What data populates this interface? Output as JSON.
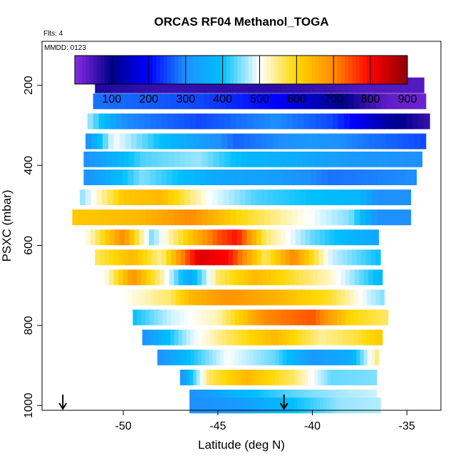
{
  "chart_data": {
    "type": "heatmap",
    "title": "ORCAS RF04 Methanol_TOGA",
    "note_flights": "Flts: 4",
    "note_date": "MMDD: 0123",
    "xlabel": "Latitude (deg N)",
    "ylabel": "PSXC (mbar)",
    "xlim": [
      -54.3,
      -33.2
    ],
    "ylim": [
      1012,
      90
    ],
    "y_reversed": true,
    "x_ticks": [
      -50,
      -45,
      -40,
      -35
    ],
    "x_tick_labels": [
      "-50",
      "-45",
      "-40",
      "-35"
    ],
    "y_ticks": [
      200,
      400,
      600,
      800,
      1000
    ],
    "y_tick_labels": [
      "200",
      "400",
      "600",
      "800",
      "1000"
    ],
    "colorbar": {
      "min": 0,
      "max": 900,
      "ticks": [
        100,
        200,
        300,
        400,
        500,
        600,
        700,
        800,
        900
      ],
      "tick_labels": [
        "100",
        "200",
        "300",
        "400",
        "500",
        "600",
        "700",
        "800",
        "900"
      ],
      "colors": [
        "#8a2be2",
        "#00008b",
        "#0000ff",
        "#1e90ff",
        "#00bfff",
        "#ffffff",
        "#ffd700",
        "#ff8c00",
        "#ff0000",
        "#8b0000"
      ]
    },
    "bands": [
      {
        "p": 200,
        "lat0": -51.5,
        "lat1": -34.1,
        "segments": [
          [
            -51.5,
            80
          ],
          [
            -48.0,
            60
          ],
          [
            -42.0,
            70
          ],
          [
            -39.0,
            55
          ],
          [
            -37.0,
            40
          ],
          [
            -34.1,
            40
          ]
        ]
      },
      {
        "p": 240,
        "lat0": -51.6,
        "lat1": -34.0,
        "segments": [
          [
            -51.6,
            280
          ],
          [
            -46.0,
            250
          ],
          [
            -42.0,
            200
          ],
          [
            -39.0,
            120
          ],
          [
            -36.0,
            30
          ],
          [
            -34.0,
            20
          ]
        ]
      },
      {
        "p": 290,
        "lat0": -51.9,
        "lat1": -33.8,
        "segments": [
          [
            -51.9,
            470
          ],
          [
            -50.0,
            300
          ],
          [
            -46.0,
            250
          ],
          [
            -42.0,
            300
          ],
          [
            -39.0,
            250
          ],
          [
            -36.0,
            120
          ],
          [
            -33.8,
            60
          ]
        ]
      },
      {
        "p": 340,
        "lat0": -52.0,
        "lat1": -34.0,
        "segments": [
          [
            -52.0,
            300
          ],
          [
            -50.5,
            500
          ],
          [
            -48.0,
            400
          ],
          [
            -44.0,
            270
          ],
          [
            -40.0,
            320
          ],
          [
            -37.0,
            280
          ],
          [
            -34.0,
            250
          ]
        ]
      },
      {
        "p": 385,
        "lat0": -52.1,
        "lat1": -34.2,
        "segments": [
          [
            -52.1,
            300
          ],
          [
            -49.0,
            430
          ],
          [
            -46.0,
            460
          ],
          [
            -43.5,
            380
          ],
          [
            -41.0,
            360
          ],
          [
            -38.0,
            320
          ],
          [
            -34.2,
            300
          ]
        ]
      },
      {
        "p": 430,
        "lat0": -52.1,
        "lat1": -34.5,
        "segments": [
          [
            -52.1,
            300
          ],
          [
            -49.0,
            450
          ],
          [
            -45.0,
            350
          ],
          [
            -42.0,
            330
          ],
          [
            -39.0,
            280
          ],
          [
            -34.5,
            300
          ]
        ]
      },
      {
        "p": 480,
        "lat0": -52.3,
        "lat1": -34.8,
        "segments": [
          [
            -52.3,
            450
          ],
          [
            -50.0,
            620
          ],
          [
            -48.0,
            640
          ],
          [
            -45.5,
            500
          ],
          [
            -43.0,
            430
          ],
          [
            -40.0,
            400
          ],
          [
            -37.5,
            380
          ],
          [
            -36.5,
            300
          ],
          [
            -34.8,
            300
          ]
        ]
      },
      {
        "p": 530,
        "lat0": -52.7,
        "lat1": -34.8,
        "segments": [
          [
            -52.7,
            620
          ],
          [
            -49.0,
            640
          ],
          [
            -46.5,
            700
          ],
          [
            -44.0,
            600
          ],
          [
            -41.0,
            520
          ],
          [
            -38.0,
            450
          ],
          [
            -36.5,
            300
          ],
          [
            -34.8,
            300
          ]
        ]
      },
      {
        "p": 580,
        "lat0": -52.0,
        "lat1": -36.5,
        "segments": [
          [
            -52.0,
            500
          ],
          [
            -50.0,
            700
          ],
          [
            -48.5,
            450
          ],
          [
            -46.5,
            620
          ],
          [
            -45.0,
            740
          ],
          [
            -44.0,
            790
          ],
          [
            -42.5,
            560
          ],
          [
            -40.0,
            440
          ],
          [
            -38.0,
            380
          ],
          [
            -36.5,
            350
          ]
        ]
      },
      {
        "p": 630,
        "lat0": -51.5,
        "lat1": -36.4,
        "segments": [
          [
            -51.5,
            560
          ],
          [
            -49.5,
            640
          ],
          [
            -48.0,
            540
          ],
          [
            -46.0,
            830
          ],
          [
            -44.5,
            800
          ],
          [
            -42.5,
            560
          ],
          [
            -41.0,
            700
          ],
          [
            -39.0,
            480
          ],
          [
            -36.4,
            400
          ]
        ]
      },
      {
        "p": 680,
        "lat0": -51.0,
        "lat1": -36.3,
        "segments": [
          [
            -51.0,
            500
          ],
          [
            -49.5,
            690
          ],
          [
            -48.0,
            540
          ],
          [
            -46.5,
            350
          ],
          [
            -45.0,
            560
          ],
          [
            -43.0,
            640
          ],
          [
            -41.0,
            580
          ],
          [
            -39.0,
            520
          ],
          [
            -36.3,
            380
          ]
        ]
      },
      {
        "p": 730,
        "lat0": -50.0,
        "lat1": -36.2,
        "segments": [
          [
            -50.0,
            500
          ],
          [
            -47.5,
            560
          ],
          [
            -46.5,
            640
          ],
          [
            -44.5,
            690
          ],
          [
            -42.0,
            650
          ],
          [
            -39.0,
            580
          ],
          [
            -37.0,
            480
          ],
          [
            -36.2,
            450
          ]
        ]
      },
      {
        "p": 780,
        "lat0": -49.5,
        "lat1": -36.0,
        "segments": [
          [
            -49.5,
            400
          ],
          [
            -47.5,
            480
          ],
          [
            -45.0,
            530
          ],
          [
            -42.5,
            700
          ],
          [
            -40.0,
            740
          ],
          [
            -38.0,
            600
          ],
          [
            -36.0,
            560
          ]
        ]
      },
      {
        "p": 830,
        "lat0": -49.0,
        "lat1": -36.3,
        "segments": [
          [
            -49.0,
            300
          ],
          [
            -46.5,
            480
          ],
          [
            -44.5,
            560
          ],
          [
            -42.0,
            640
          ],
          [
            -39.5,
            540
          ],
          [
            -37.5,
            580
          ],
          [
            -36.3,
            620
          ]
        ]
      },
      {
        "p": 880,
        "lat0": -48.2,
        "lat1": -36.5,
        "segments": [
          [
            -48.2,
            300
          ],
          [
            -46.5,
            400
          ],
          [
            -44.5,
            500
          ],
          [
            -42.0,
            440
          ],
          [
            -40.0,
            320
          ],
          [
            -38.0,
            360
          ],
          [
            -36.5,
            560
          ]
        ]
      },
      {
        "p": 930,
        "lat0": -47.0,
        "lat1": -36.6,
        "segments": [
          [
            -47.0,
            300
          ],
          [
            -45.5,
            560
          ],
          [
            -43.5,
            640
          ],
          [
            -41.0,
            560
          ],
          [
            -39.0,
            440
          ],
          [
            -36.6,
            450
          ]
        ]
      },
      {
        "p": 980,
        "lat0": -46.5,
        "lat1": -36.6,
        "segments": [
          [
            -46.5,
            300
          ],
          [
            -44.0,
            380
          ],
          [
            -42.0,
            420
          ],
          [
            -40.0,
            450
          ],
          [
            -38.0,
            470
          ],
          [
            -36.6,
            480
          ]
        ]
      },
      {
        "p": 1000,
        "lat0": -46.5,
        "lat1": -36.4,
        "segments": [
          [
            -46.5,
            300
          ],
          [
            -44.0,
            320
          ],
          [
            -41.0,
            400
          ],
          [
            -38.5,
            460
          ],
          [
            -36.4,
            470
          ]
        ]
      }
    ],
    "arrows_lat": [
      -53.2,
      -41.5
    ]
  }
}
